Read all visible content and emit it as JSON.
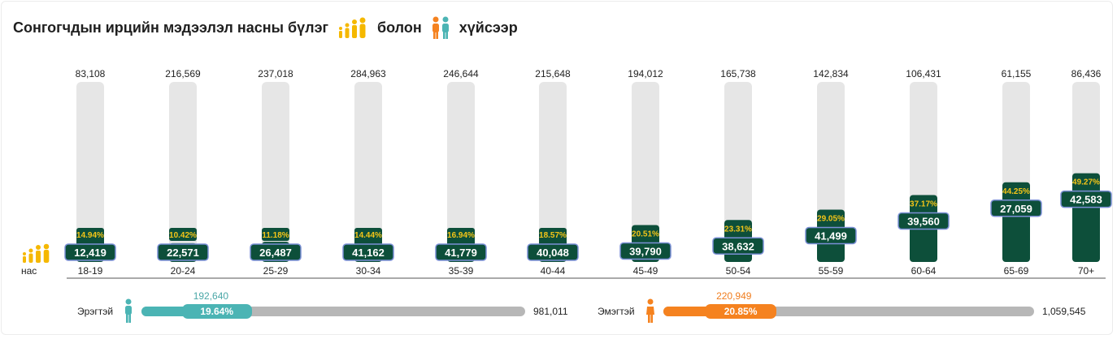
{
  "title": {
    "part1": "Сонгогчдын ирцийн мэдээлэл насны бүлэг",
    "part2": "болон",
    "part3": "хүйсээр",
    "group_icon": "people-group-icon",
    "gender_icon": "male-female-icon"
  },
  "colors": {
    "dark_green": "#0d4f3a",
    "track_gray": "#e6e6e6",
    "pct_yellow": "#f5c518",
    "male_teal": "#4bb4b4",
    "female_orange": "#f5821f",
    "bar_gray": "#b7b7b7"
  },
  "axis_label": "нас",
  "chart_data": {
    "type": "bar",
    "categories": [
      "18-19",
      "20-24",
      "25-29",
      "30-34",
      "35-39",
      "40-44",
      "45-49",
      "50-54",
      "55-59",
      "60-64",
      "65-69",
      "70+"
    ],
    "totals_display": [
      "83,108",
      "216,569",
      "237,018",
      "284,963",
      "246,644",
      "215,648",
      "194,012",
      "165,738",
      "142,834",
      "106,431",
      "61,155",
      "86,436"
    ],
    "voted_display": [
      "12,419",
      "22,571",
      "26,487",
      "41,162",
      "41,779",
      "40,048",
      "39,790",
      "38,632",
      "41,499",
      "39,560",
      "27,059",
      "42,583"
    ],
    "turnout_display": [
      "14.94%",
      "10.42%",
      "11.18%",
      "14.44%",
      "16.94%",
      "18.57%",
      "20.51%",
      "23.31%",
      "29.05%",
      "37.17%",
      "44.25%",
      "49.27%"
    ],
    "turnout": [
      14.94,
      10.42,
      11.18,
      14.44,
      16.94,
      18.57,
      20.51,
      23.31,
      29.05,
      37.17,
      44.25,
      49.27
    ],
    "ylim": [
      0,
      100
    ]
  },
  "gender": {
    "male": {
      "label": "Эрэгтэй",
      "voted": "192,640",
      "percent_label": "19.64%",
      "percent": 19.64,
      "total": "981,011",
      "icon": "male-icon"
    },
    "female": {
      "label": "Эмэгтэй",
      "voted": "220,949",
      "percent_label": "20.85%",
      "percent": 20.85,
      "total": "1,059,545",
      "icon": "female-icon"
    }
  }
}
